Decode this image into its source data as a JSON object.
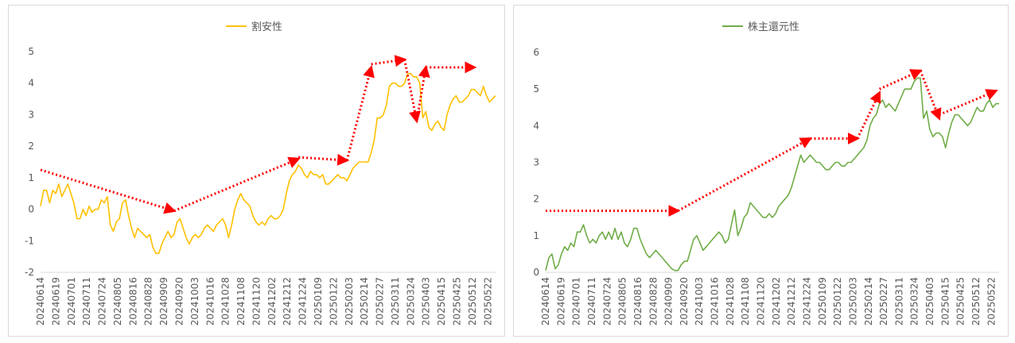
{
  "chart_data": [
    {
      "type": "line",
      "legend_position": "top",
      "grid": false,
      "ylim": [
        -2,
        5
      ],
      "y_ticks": [
        -2,
        -1,
        0,
        1,
        2,
        3,
        4,
        5
      ],
      "x_tick_labels": [
        "20240614",
        "20240619",
        "20240701",
        "20240711",
        "20240724",
        "20240805",
        "20240816",
        "20240828",
        "20240909",
        "20240920",
        "20241003",
        "20241016",
        "20241028",
        "20241108",
        "20241120",
        "20241202",
        "20241212",
        "20241224",
        "20250109",
        "20250122",
        "20250203",
        "20250214",
        "20250227",
        "20250311",
        "20250324",
        "20250403",
        "20250415",
        "20250425",
        "20250512",
        "20250522"
      ],
      "series": [
        {
          "name": "割安性",
          "color": "#FFC000",
          "values": [
            0.1,
            0.6,
            0.6,
            0.2,
            0.6,
            0.5,
            0.8,
            0.4,
            0.6,
            0.8,
            0.5,
            0.2,
            -0.3,
            -0.3,
            0.0,
            -0.2,
            0.1,
            -0.1,
            0.0,
            0.0,
            0.3,
            0.2,
            0.4,
            -0.5,
            -0.7,
            -0.4,
            -0.3,
            0.2,
            0.3,
            -0.2,
            -0.6,
            -0.9,
            -0.6,
            -0.7,
            -0.8,
            -0.9,
            -0.8,
            -1.2,
            -1.4,
            -1.4,
            -1.1,
            -0.9,
            -0.7,
            -0.9,
            -0.8,
            -0.4,
            -0.3,
            -0.6,
            -0.9,
            -1.1,
            -0.9,
            -0.8,
            -0.9,
            -0.8,
            -0.6,
            -0.5,
            -0.6,
            -0.7,
            -0.5,
            -0.4,
            -0.3,
            -0.5,
            -0.9,
            -0.5,
            0.0,
            0.3,
            0.5,
            0.3,
            0.2,
            0.1,
            -0.2,
            -0.4,
            -0.5,
            -0.4,
            -0.5,
            -0.3,
            -0.2,
            -0.3,
            -0.3,
            -0.2,
            0.0,
            0.5,
            0.9,
            1.1,
            1.2,
            1.4,
            1.3,
            1.1,
            1.0,
            1.2,
            1.1,
            1.1,
            1.0,
            1.1,
            0.8,
            0.8,
            0.9,
            1.0,
            1.1,
            1.0,
            1.0,
            0.9,
            1.1,
            1.3,
            1.4,
            1.5,
            1.5,
            1.5,
            1.5,
            1.8,
            2.2,
            2.9,
            2.9,
            3.0,
            3.3,
            3.9,
            4.0,
            4.0,
            3.9,
            3.9,
            4.0,
            4.3,
            4.3,
            4.2,
            4.2,
            4.0,
            2.9,
            3.1,
            2.6,
            2.5,
            2.7,
            2.8,
            2.6,
            2.5,
            3.0,
            3.3,
            3.5,
            3.6,
            3.4,
            3.4,
            3.5,
            3.6,
            3.8,
            3.8,
            3.7,
            3.6,
            3.9,
            3.6,
            3.4,
            3.5,
            3.6
          ]
        }
      ],
      "annotations": [
        {
          "type": "dotted-arrow",
          "color": "#FF0000",
          "from": [
            0,
            1.25
          ],
          "to": [
            44,
            -0.05
          ]
        },
        {
          "type": "dotted-arrow",
          "color": "#FF0000",
          "from": [
            44,
            -0.05
          ],
          "to": [
            85,
            1.6
          ]
        },
        {
          "type": "dotted-arrow",
          "color": "#FF0000",
          "from": [
            85,
            1.65
          ],
          "to": [
            101,
            1.55
          ]
        },
        {
          "type": "dotted-arrow",
          "color": "#FF0000",
          "from": [
            101,
            1.55
          ],
          "to": [
            109,
            4.5
          ]
        },
        {
          "type": "dotted-arrow",
          "color": "#FF0000",
          "from": [
            109,
            4.6
          ],
          "to": [
            120,
            4.75
          ]
        },
        {
          "type": "dotted-arrow",
          "color": "#FF0000",
          "from": [
            120,
            4.75
          ],
          "to": [
            124,
            2.8
          ]
        },
        {
          "type": "dotted-arrow",
          "color": "#FF0000",
          "from": [
            124,
            2.8
          ],
          "to": [
            127,
            4.5
          ]
        },
        {
          "type": "dotted-arrow",
          "color": "#FF0000",
          "from": [
            127,
            4.5
          ],
          "to": [
            143,
            4.5
          ]
        }
      ]
    },
    {
      "type": "line",
      "legend_position": "top",
      "grid": false,
      "ylim": [
        0,
        6
      ],
      "y_ticks": [
        0,
        1,
        2,
        3,
        4,
        5,
        6
      ],
      "x_tick_labels": [
        "20240614",
        "20240619",
        "20240701",
        "20240711",
        "20240724",
        "20240805",
        "20240816",
        "20240828",
        "20240909",
        "20240920",
        "20241003",
        "20241016",
        "20241028",
        "20241108",
        "20241120",
        "20241202",
        "20241212",
        "20241224",
        "20250109",
        "20250122",
        "20250203",
        "20250214",
        "20250227",
        "20250311",
        "20250324",
        "20250403",
        "20250415",
        "20250425",
        "20250512",
        "20250522"
      ],
      "series": [
        {
          "name": "株主還元性",
          "color": "#70AD47",
          "values": [
            0.05,
            0.4,
            0.5,
            0.1,
            0.2,
            0.5,
            0.7,
            0.6,
            0.8,
            0.7,
            1.1,
            1.1,
            1.3,
            1.0,
            0.8,
            0.9,
            0.8,
            1.0,
            1.1,
            0.9,
            1.1,
            0.9,
            1.2,
            0.9,
            1.1,
            0.8,
            0.7,
            0.9,
            1.2,
            1.2,
            0.9,
            0.7,
            0.5,
            0.4,
            0.5,
            0.6,
            0.5,
            0.4,
            0.3,
            0.2,
            0.1,
            0.05,
            0.05,
            0.2,
            0.3,
            0.3,
            0.6,
            0.9,
            1.0,
            0.8,
            0.6,
            0.7,
            0.8,
            0.9,
            1.0,
            1.1,
            1.0,
            0.8,
            0.9,
            1.3,
            1.7,
            1.0,
            1.2,
            1.5,
            1.6,
            1.9,
            1.8,
            1.7,
            1.6,
            1.5,
            1.5,
            1.6,
            1.5,
            1.6,
            1.8,
            1.9,
            2.0,
            2.1,
            2.3,
            2.6,
            2.9,
            3.2,
            3.0,
            3.1,
            3.2,
            3.1,
            3.0,
            3.0,
            2.9,
            2.8,
            2.8,
            2.9,
            3.0,
            3.0,
            2.9,
            2.9,
            3.0,
            3.0,
            3.1,
            3.2,
            3.3,
            3.4,
            3.6,
            4.0,
            4.2,
            4.3,
            4.6,
            4.7,
            4.5,
            4.6,
            4.5,
            4.4,
            4.6,
            4.8,
            5.0,
            5.0,
            5.0,
            5.2,
            5.3,
            5.3,
            4.2,
            4.4,
            3.9,
            3.7,
            3.8,
            3.8,
            3.7,
            3.4,
            3.8,
            4.1,
            4.3,
            4.3,
            4.2,
            4.1,
            4.0,
            4.1,
            4.3,
            4.5,
            4.4,
            4.4,
            4.6,
            4.7,
            4.5,
            4.6,
            4.6
          ]
        }
      ],
      "annotations": [
        {
          "type": "dotted-arrow",
          "color": "#FF0000",
          "from": [
            0,
            1.68
          ],
          "to": [
            42,
            1.68
          ]
        },
        {
          "type": "dotted-arrow",
          "color": "#FF0000",
          "from": [
            42,
            1.68
          ],
          "to": [
            84,
            3.65
          ]
        },
        {
          "type": "dotted-arrow",
          "color": "#FF0000",
          "from": [
            84,
            3.65
          ],
          "to": [
            99,
            3.65
          ]
        },
        {
          "type": "dotted-arrow",
          "color": "#FF0000",
          "from": [
            99,
            3.65
          ],
          "to": [
            106,
            4.9
          ]
        },
        {
          "type": "dotted-arrow",
          "color": "#FF0000",
          "from": [
            106,
            5.0
          ],
          "to": [
            119,
            5.5
          ]
        },
        {
          "type": "dotted-arrow",
          "color": "#FF0000",
          "from": [
            119,
            5.5
          ],
          "to": [
            125,
            4.2
          ]
        },
        {
          "type": "dotted-arrow",
          "color": "#FF0000",
          "from": [
            125,
            4.3
          ],
          "to": [
            143,
            4.95
          ]
        }
      ]
    }
  ]
}
